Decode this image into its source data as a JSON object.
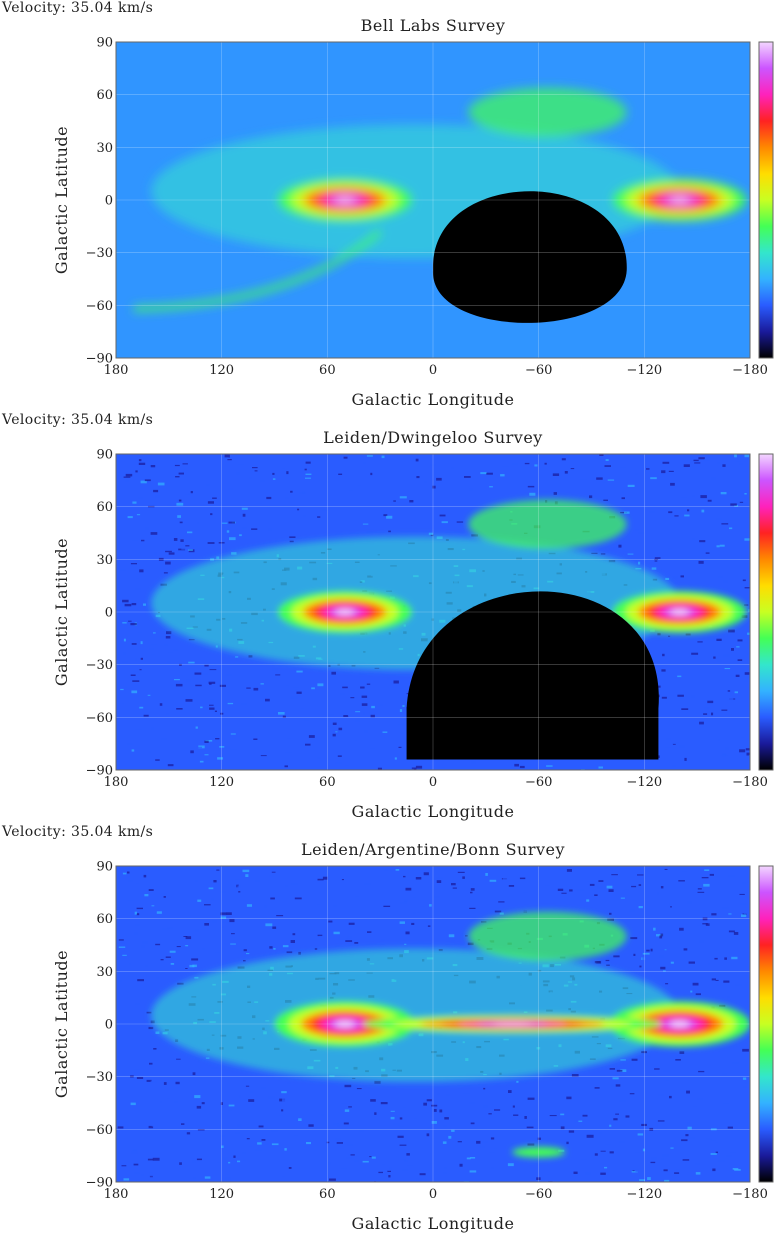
{
  "velocity_label": "Velocity: 35.04 km/s",
  "chart_data": [
    {
      "type": "heatmap",
      "title": "Bell Labs Survey",
      "xlabel": "Galactic Longitude",
      "ylabel": "Galactic Latitude",
      "xlim": [
        180,
        -180
      ],
      "ylim": [
        -90,
        90
      ],
      "xticks": [
        180,
        120,
        60,
        0,
        -60,
        -120,
        -180
      ],
      "yticks": [
        90,
        60,
        30,
        0,
        -30,
        -60,
        -90
      ],
      "grid": true,
      "colorbar": "right",
      "colormap": [
        "#000000",
        "#1a1a9a",
        "#2a5cff",
        "#33b2ff",
        "#33e6cc",
        "#44ff55",
        "#c8ff22",
        "#ffdd00",
        "#ff8800",
        "#ff2222",
        "#ff22bb",
        "#cc55ff",
        "#f3d6ff"
      ]
    },
    {
      "type": "heatmap",
      "title": "Leiden/Dwingeloo Survey",
      "xlabel": "Galactic Longitude",
      "ylabel": "Galactic Latitude",
      "xlim": [
        180,
        -180
      ],
      "ylim": [
        -90,
        90
      ],
      "xticks": [
        180,
        120,
        60,
        0,
        -60,
        -120,
        -180
      ],
      "yticks": [
        90,
        60,
        30,
        0,
        -30,
        -60,
        -90
      ],
      "grid": true,
      "colorbar": "right",
      "colormap": [
        "#000000",
        "#1a1a9a",
        "#2a5cff",
        "#33b2ff",
        "#33e6cc",
        "#44ff55",
        "#c8ff22",
        "#ffdd00",
        "#ff8800",
        "#ff2222",
        "#ff22bb",
        "#cc55ff",
        "#f3d6ff"
      ]
    },
    {
      "type": "heatmap",
      "title": "Leiden/Argentine/Bonn Survey",
      "xlabel": "Galactic Longitude",
      "ylabel": "Galactic Latitude",
      "xlim": [
        180,
        -180
      ],
      "ylim": [
        -90,
        90
      ],
      "xticks": [
        180,
        120,
        60,
        0,
        -60,
        -120,
        -180
      ],
      "yticks": [
        90,
        60,
        30,
        0,
        -30,
        -60,
        -90
      ],
      "grid": true,
      "colorbar": "right",
      "colormap": [
        "#000000",
        "#1a1a9a",
        "#2a5cff",
        "#33b2ff",
        "#33e6cc",
        "#44ff55",
        "#c8ff22",
        "#ffdd00",
        "#ff8800",
        "#ff2222",
        "#ff22bb",
        "#cc55ff",
        "#f3d6ff"
      ]
    }
  ]
}
